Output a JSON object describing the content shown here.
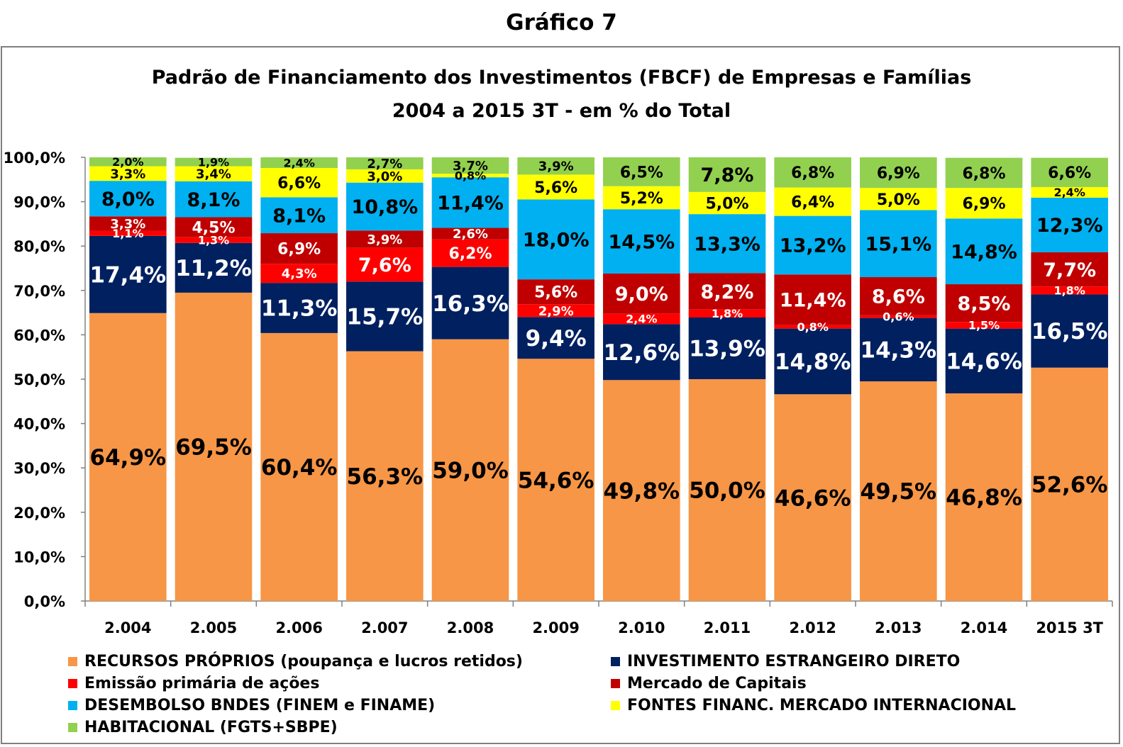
{
  "header": {
    "graph_title": "Gráfico 7"
  },
  "chart_data": {
    "type": "bar",
    "stacked": true,
    "title": "Padrão de Financiamento dos Investimentos (FBCF) de Empresas e Famílias",
    "subtitle": "2004 a 2015 3T  - em % do Total",
    "categories": [
      "2.004",
      "2.005",
      "2.006",
      "2.007",
      "2.008",
      "2.009",
      "2.010",
      "2.011",
      "2.012",
      "2.013",
      "2.014",
      "2015 3T"
    ],
    "ylim": [
      0,
      100
    ],
    "y_ticks": [
      "0,0%",
      "10,0%",
      "20,0%",
      "30,0%",
      "40,0%",
      "50,0%",
      "60,0%",
      "70,0%",
      "80,0%",
      "90,0%",
      "100,0%"
    ],
    "grid": false,
    "legend_position": "bottom",
    "series": [
      {
        "name": "RECURSOS PRÓPRIOS (poupança e lucros retidos)",
        "color": "#f79646",
        "label_color": "#000000",
        "values": [
          64.9,
          69.5,
          60.4,
          56.3,
          59.0,
          54.6,
          49.8,
          50.0,
          46.6,
          49.5,
          46.8,
          52.6
        ],
        "labels": [
          "64,9%",
          "69,5%",
          "60,4%",
          "56,3%",
          "59,0%",
          "54,6%",
          "49,8%",
          "50,0%",
          "46,6%",
          "49,5%",
          "46,8%",
          "52,6%"
        ]
      },
      {
        "name": "INVESTIMENTO ESTRANGEIRO DIRETO",
        "color": "#002060",
        "label_color": "#ffffff",
        "values": [
          17.4,
          11.2,
          11.3,
          15.7,
          16.3,
          9.4,
          12.6,
          13.9,
          14.8,
          14.3,
          14.6,
          16.5
        ],
        "labels": [
          "17,4%",
          "11,2%",
          "11,3%",
          "15,7%",
          "16,3%",
          "9,4%",
          "12,6%",
          "13,9%",
          "14,8%",
          "14,3%",
          "14,6%",
          "16,5%"
        ]
      },
      {
        "name": "Emissão primária de ações",
        "color": "#ff0000",
        "label_color": "#ffffff",
        "values": [
          1.1,
          1.3,
          4.3,
          7.6,
          6.2,
          2.9,
          2.4,
          1.8,
          0.8,
          0.6,
          1.5,
          1.8
        ],
        "labels": [
          "1,1%",
          "1,3%",
          "4,3%",
          "7,6%",
          "6,2%",
          "2,9%",
          "2,4%",
          "1,8%",
          "0,8%",
          "0,6%",
          "1,5%",
          "1,8%"
        ]
      },
      {
        "name": "Mercado de Capitais",
        "color": "#c00000",
        "label_color": "#ffffff",
        "values": [
          3.3,
          4.5,
          6.9,
          3.9,
          2.6,
          5.6,
          9.0,
          8.2,
          11.4,
          8.6,
          8.5,
          7.7
        ],
        "labels": [
          "3,3%",
          "4,5%",
          "6,9%",
          "3,9%",
          "2,6%",
          "5,6%",
          "9,0%",
          "8,2%",
          "11,4%",
          "8,6%",
          "8,5%",
          "7,7%"
        ]
      },
      {
        "name": "DESEMBOLSO BNDES (FINEM e FINAME)",
        "color": "#00b0f0",
        "label_color": "#000000",
        "values": [
          8.0,
          8.1,
          8.1,
          10.8,
          11.4,
          18.0,
          14.5,
          13.3,
          13.2,
          15.1,
          14.8,
          12.3
        ],
        "labels": [
          "8,0%",
          "8,1%",
          "8,1%",
          "10,8%",
          "11,4%",
          "18,0%",
          "14,5%",
          "13,3%",
          "13,2%",
          "15,1%",
          "14,8%",
          "12,3%"
        ]
      },
      {
        "name": "FONTES FINANC. MERCADO INTERNACIONAL",
        "color": "#ffff00",
        "label_color": "#000000",
        "values": [
          3.3,
          3.4,
          6.6,
          3.0,
          0.8,
          5.6,
          5.2,
          5.0,
          6.4,
          5.0,
          6.9,
          2.4
        ],
        "labels": [
          "3,3%",
          "3,4%",
          "6,6%",
          "3,0%",
          "0,8%",
          "5,6%",
          "5,2%",
          "5,0%",
          "6,4%",
          "5,0%",
          "6,9%",
          "2,4%"
        ]
      },
      {
        "name": "HABITACIONAL (FGTS+SBPE)",
        "color": "#92d050",
        "label_color": "#000000",
        "values": [
          2.0,
          1.9,
          2.4,
          2.7,
          3.7,
          3.9,
          6.5,
          7.8,
          6.8,
          6.9,
          6.8,
          6.6
        ],
        "labels": [
          "2,0%",
          "1,9%",
          "2,4%",
          "2,7%",
          "3,7%",
          "3,9%",
          "6,5%",
          "7,8%",
          "6,8%",
          "6,9%",
          "6,8%",
          "6,6%"
        ]
      }
    ]
  }
}
